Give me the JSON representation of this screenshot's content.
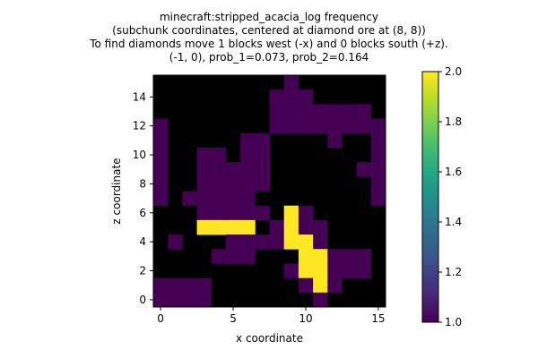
{
  "chart_data": {
    "type": "heatmap",
    "title_lines": [
      "minecraft:stripped_acacia_log frequency",
      "(subchunk coordinates, centered at diamond ore at (8, 8))",
      "To find diamonds move 1 blocks west (-x) and 0 blocks south (+z).",
      "(-1, 0), prob_1=0.073, prob_2=0.164"
    ],
    "xlabel": "x coordinate",
    "ylabel": "z coordinate",
    "x_ticks": [
      0,
      5,
      10,
      15
    ],
    "y_ticks": [
      0,
      2,
      4,
      6,
      8,
      10,
      12,
      14
    ],
    "xlim": [
      -0.5,
      15.5
    ],
    "ylim": [
      15.5,
      -0.5
    ],
    "colorbar": {
      "min": 1.0,
      "max": 2.0,
      "ticks": [
        "1.0",
        "1.2",
        "1.4",
        "1.6",
        "1.8",
        "2.0"
      ],
      "colormap": "viridis"
    },
    "background_color": "#000000",
    "colors": {
      "1": "#440154",
      "2": "#fde725"
    },
    "grid": [
      [
        0,
        0,
        0,
        0,
        0,
        0,
        0,
        0,
        0,
        1,
        0,
        0,
        0,
        0,
        0,
        0
      ],
      [
        0,
        0,
        0,
        0,
        0,
        0,
        0,
        0,
        1,
        1,
        1,
        0,
        0,
        0,
        0,
        0
      ],
      [
        0,
        0,
        0,
        0,
        0,
        0,
        0,
        0,
        1,
        1,
        1,
        1,
        1,
        1,
        1,
        0
      ],
      [
        1,
        0,
        0,
        0,
        0,
        0,
        0,
        0,
        1,
        1,
        1,
        1,
        1,
        1,
        1,
        1
      ],
      [
        1,
        0,
        0,
        0,
        0,
        0,
        1,
        1,
        0,
        0,
        0,
        0,
        1,
        0,
        0,
        1
      ],
      [
        1,
        0,
        0,
        1,
        1,
        0,
        1,
        1,
        0,
        0,
        0,
        0,
        0,
        0,
        0,
        1
      ],
      [
        1,
        0,
        0,
        1,
        1,
        1,
        1,
        1,
        0,
        0,
        0,
        0,
        0,
        0,
        1,
        1
      ],
      [
        1,
        0,
        0,
        1,
        1,
        1,
        1,
        1,
        0,
        0,
        0,
        0,
        0,
        0,
        0,
        1
      ],
      [
        1,
        0,
        1,
        1,
        1,
        1,
        1,
        0,
        0,
        0,
        0,
        0,
        0,
        0,
        0,
        1
      ],
      [
        0,
        0,
        0,
        1,
        1,
        1,
        1,
        1,
        0,
        2,
        1,
        0,
        0,
        0,
        0,
        0
      ],
      [
        0,
        0,
        0,
        2,
        2,
        2,
        2,
        0,
        1,
        2,
        1,
        1,
        0,
        0,
        0,
        0
      ],
      [
        0,
        1,
        0,
        0,
        0,
        1,
        1,
        1,
        1,
        2,
        2,
        1,
        0,
        0,
        0,
        0
      ],
      [
        0,
        0,
        0,
        0,
        1,
        1,
        1,
        0,
        0,
        0,
        2,
        2,
        1,
        1,
        1,
        0
      ],
      [
        0,
        0,
        0,
        0,
        0,
        0,
        0,
        0,
        0,
        1,
        2,
        2,
        1,
        1,
        1,
        0
      ],
      [
        1,
        1,
        1,
        1,
        0,
        0,
        0,
        0,
        0,
        0,
        1,
        2,
        1,
        0,
        0,
        0
      ],
      [
        1,
        1,
        1,
        1,
        0,
        0,
        0,
        0,
        0,
        0,
        0,
        1,
        0,
        0,
        0,
        0
      ]
    ]
  }
}
